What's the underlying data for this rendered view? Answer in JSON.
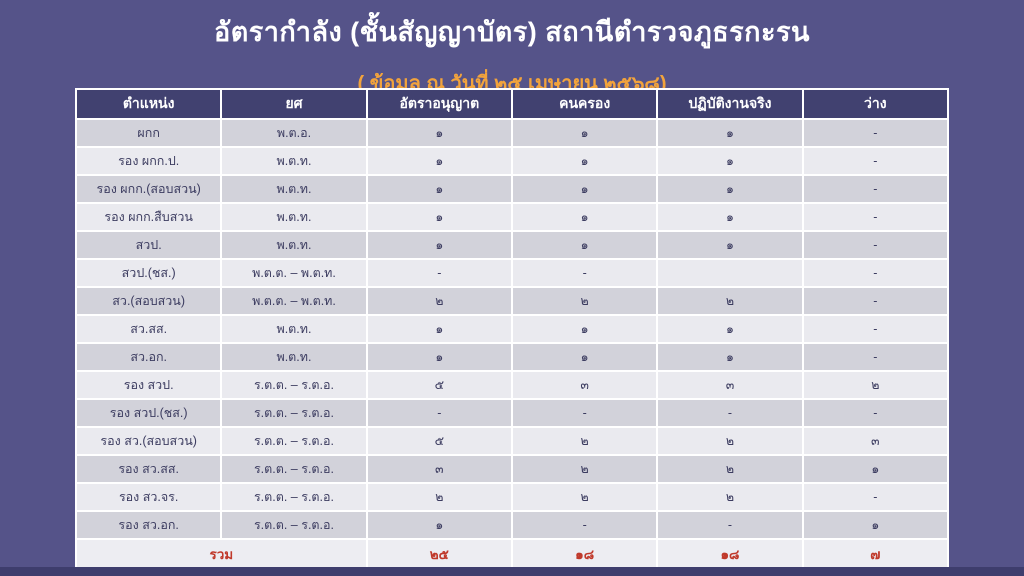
{
  "page": {
    "title": "อัตรากำลัง (ชั้นสัญญาบัตร) สถานีตำรวจภูธรกะรน",
    "subtitle": "( ข้อมูล ณ วันที่ ๒๕ เมษายน ๒๕๖๘)"
  },
  "colors": {
    "page_background": "#555389",
    "header_background": "#414170",
    "row_dark": "#d2d2da",
    "row_light": "#eaeaef",
    "body_text": "#3c3c60",
    "title_text": "#ffffff",
    "subtitle_text": "#f2a33c",
    "total_text": "#c0392b",
    "grid_line": "#ffffff"
  },
  "table": {
    "columns": [
      "ตำแหน่ง",
      "ยศ",
      "อัตราอนุญาต",
      "คนครอง",
      "ปฏิบัติงานจริง",
      "ว่าง"
    ],
    "rows": [
      {
        "position": "ผกก",
        "rank": "พ.ต.อ.",
        "authorized": "๑",
        "occupied": "๑",
        "working": "๑",
        "vacant": "-"
      },
      {
        "position": "รอง ผกก.ป.",
        "rank": "พ.ต.ท.",
        "authorized": "๑",
        "occupied": "๑",
        "working": "๑",
        "vacant": "-"
      },
      {
        "position": "รอง ผกก.(สอบสวน)",
        "rank": "พ.ต.ท.",
        "authorized": "๑",
        "occupied": "๑",
        "working": "๑",
        "vacant": "-"
      },
      {
        "position": "รอง ผกก.สืบสวน",
        "rank": "พ.ต.ท.",
        "authorized": "๑",
        "occupied": "๑",
        "working": "๑",
        "vacant": "-"
      },
      {
        "position": "สวป.",
        "rank": "พ.ต.ท.",
        "authorized": "๑",
        "occupied": "๑",
        "working": "๑",
        "vacant": "-"
      },
      {
        "position": "สวป.(ชส.)",
        "rank": "พ.ต.ต. – พ.ต.ท.",
        "authorized": "-",
        "occupied": "-",
        "working": "",
        "vacant": "-"
      },
      {
        "position": "สว.(สอบสวน)",
        "rank": "พ.ต.ต. – พ.ต.ท.",
        "authorized": "๒",
        "occupied": "๒",
        "working": "๒",
        "vacant": "-"
      },
      {
        "position": "สว.สส.",
        "rank": "พ.ต.ท.",
        "authorized": "๑",
        "occupied": "๑",
        "working": "๑",
        "vacant": "-"
      },
      {
        "position": "สว.อก.",
        "rank": "พ.ต.ท.",
        "authorized": "๑",
        "occupied": "๑",
        "working": "๑",
        "vacant": "-"
      },
      {
        "position": "รอง สวป.",
        "rank": "ร.ต.ต. – ร.ต.อ.",
        "authorized": "๕",
        "occupied": "๓",
        "working": "๓",
        "vacant": "๒"
      },
      {
        "position": "รอง สวป.(ชส.)",
        "rank": "ร.ต.ต. – ร.ต.อ.",
        "authorized": "-",
        "occupied": "-",
        "working": "-",
        "vacant": "-"
      },
      {
        "position": "รอง สว.(สอบสวน)",
        "rank": "ร.ต.ต. – ร.ต.อ.",
        "authorized": "๕",
        "occupied": "๒",
        "working": "๒",
        "vacant": "๓"
      },
      {
        "position": "รอง สว.สส.",
        "rank": "ร.ต.ต. – ร.ต.อ.",
        "authorized": "๓",
        "occupied": "๒",
        "working": "๒",
        "vacant": "๑"
      },
      {
        "position": "รอง สว.จร.",
        "rank": "ร.ต.ต. – ร.ต.อ.",
        "authorized": "๒",
        "occupied": "๒",
        "working": "๒",
        "vacant": "-"
      },
      {
        "position": "รอง สว.อก.",
        "rank": "ร.ต.ต. – ร.ต.อ.",
        "authorized": "๑",
        "occupied": "-",
        "working": "-",
        "vacant": "๑"
      }
    ],
    "total": {
      "label": "รวม",
      "authorized": "๒๕",
      "occupied": "๑๘",
      "working": "๑๘",
      "vacant": "๗"
    }
  }
}
